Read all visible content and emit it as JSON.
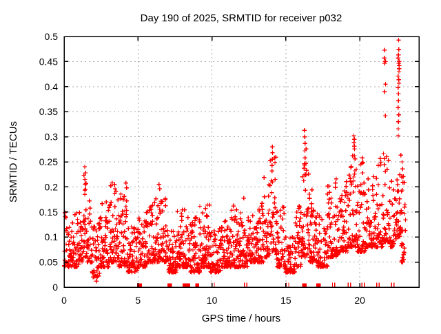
{
  "chart_data": {
    "type": "scatter",
    "title": "Day 190 of 2025, SRMTID for receiver p032",
    "xlabel": "GPS time / hours",
    "ylabel": "SRMTID / TECUs",
    "xlim": [
      0,
      24
    ],
    "ylim": [
      0,
      0.5
    ],
    "xticks": [
      0,
      5,
      10,
      15,
      20
    ],
    "yticks": [
      0,
      0.05,
      0.1,
      0.15,
      0.2,
      0.25,
      0.3,
      0.35,
      0.4,
      0.45,
      0.5
    ],
    "grid": true,
    "legend": "none",
    "marker": "plus",
    "marker_color": "#ff0000",
    "grid_color": "#a9a9a9",
    "axis_color": "#000000",
    "background_color": "#ffffff",
    "series": [
      {
        "name": "SRMTID",
        "marker": "plus",
        "color": "#ff0000"
      }
    ],
    "data_hours_range": [
      0.0,
      23.1
    ],
    "points_per_hour": 62,
    "cloud_bands_comment": "dense scatter envelope per time interval: [t_start_h, t_end_h, value_lo_TECU, value_hi_TECU]",
    "cloud_bands": [
      [
        0.0,
        0.5,
        0.04,
        0.16
      ],
      [
        0.5,
        1.0,
        0.04,
        0.15
      ],
      [
        1.0,
        1.3,
        0.05,
        0.16
      ],
      [
        1.3,
        1.55,
        0.06,
        0.24
      ],
      [
        1.55,
        1.9,
        0.05,
        0.2
      ],
      [
        1.9,
        2.4,
        0.02,
        0.13
      ],
      [
        2.4,
        3.0,
        0.04,
        0.17
      ],
      [
        3.0,
        3.7,
        0.05,
        0.21
      ],
      [
        3.7,
        4.3,
        0.04,
        0.2
      ],
      [
        4.3,
        5.0,
        0.03,
        0.13
      ],
      [
        5.0,
        5.6,
        0.04,
        0.15
      ],
      [
        5.6,
        6.2,
        0.05,
        0.17
      ],
      [
        6.2,
        7.0,
        0.05,
        0.18
      ],
      [
        7.0,
        7.6,
        0.03,
        0.13
      ],
      [
        7.6,
        8.5,
        0.04,
        0.16
      ],
      [
        8.5,
        9.2,
        0.03,
        0.14
      ],
      [
        9.2,
        9.9,
        0.04,
        0.17
      ],
      [
        9.9,
        10.6,
        0.03,
        0.12
      ],
      [
        10.6,
        11.3,
        0.04,
        0.14
      ],
      [
        11.3,
        12.0,
        0.04,
        0.17
      ],
      [
        12.0,
        12.4,
        0.04,
        0.18
      ],
      [
        12.4,
        13.0,
        0.05,
        0.15
      ],
      [
        13.0,
        13.5,
        0.05,
        0.17
      ],
      [
        13.5,
        13.9,
        0.06,
        0.22
      ],
      [
        13.9,
        14.35,
        0.07,
        0.26
      ],
      [
        14.35,
        14.9,
        0.04,
        0.16
      ],
      [
        14.9,
        15.6,
        0.03,
        0.1
      ],
      [
        15.6,
        16.1,
        0.04,
        0.18
      ],
      [
        16.1,
        16.55,
        0.06,
        0.28
      ],
      [
        16.55,
        17.1,
        0.05,
        0.2
      ],
      [
        17.1,
        17.8,
        0.04,
        0.15
      ],
      [
        17.8,
        18.6,
        0.06,
        0.21
      ],
      [
        18.6,
        19.2,
        0.07,
        0.22
      ],
      [
        19.2,
        19.75,
        0.08,
        0.27
      ],
      [
        19.75,
        20.4,
        0.07,
        0.25
      ],
      [
        20.4,
        21.1,
        0.08,
        0.24
      ],
      [
        21.1,
        21.6,
        0.08,
        0.26
      ],
      [
        21.6,
        22.0,
        0.09,
        0.28
      ],
      [
        22.0,
        22.5,
        0.08,
        0.24
      ],
      [
        22.5,
        22.8,
        0.1,
        0.28
      ],
      [
        22.8,
        23.1,
        0.05,
        0.22
      ]
    ],
    "spike_clusters_comment": "distinct high/low outlier columns read from the plot: {t: hour, values: TECU list}",
    "spike_clusters": [
      {
        "t": 1.42,
        "values": [
          0.24,
          0.228,
          0.215,
          0.205,
          0.195,
          0.185
        ]
      },
      {
        "t": 2.15,
        "values": [
          0.012
        ]
      },
      {
        "t": 3.45,
        "values": [
          0.205,
          0.196
        ]
      },
      {
        "t": 4.2,
        "values": [
          0.208
        ]
      },
      {
        "t": 6.45,
        "values": [
          0.205,
          0.196
        ]
      },
      {
        "t": 14.1,
        "values": [
          0.28,
          0.268,
          0.255,
          0.243,
          0.232
        ]
      },
      {
        "t": 16.3,
        "values": [
          0.313,
          0.3,
          0.287,
          0.272,
          0.258,
          0.246
        ]
      },
      {
        "t": 18.38,
        "values": [
          0.216,
          0.208,
          0.199
        ]
      },
      {
        "t": 19.6,
        "values": [
          0.302,
          0.295,
          0.288,
          0.281,
          0.276
        ]
      },
      {
        "t": 20.15,
        "values": [
          0.258,
          0.247,
          0.228
        ]
      },
      {
        "t": 21.7,
        "values": [
          0.473,
          0.457,
          0.45,
          0.447,
          0.405,
          0.39,
          0.342
        ]
      },
      {
        "t": 22.62,
        "values": [
          0.493,
          0.474,
          0.463,
          0.457,
          0.45,
          0.447,
          0.442,
          0.436,
          0.43,
          0.421,
          0.414,
          0.407,
          0.398,
          0.386,
          0.372,
          0.358,
          0.344,
          0.33,
          0.316,
          0.302
        ]
      },
      {
        "t": 22.9,
        "values": [
          0.25,
          0.236,
          0.221,
          0.209
        ]
      }
    ],
    "zero_line_squares_comment": "solid red square markers sitting on the y=0 axis: {t: hour, w: width in hours}",
    "zero_line_squares": [
      {
        "t": 5.1,
        "w": 0.32
      },
      {
        "t": 7.15,
        "w": 0.3
      },
      {
        "t": 8.27,
        "w": 0.5
      },
      {
        "t": 9.0,
        "w": 0.26
      },
      {
        "t": 16.25,
        "w": 0.32
      },
      {
        "t": 17.2,
        "w": 0.3
      }
    ],
    "zero_line_tick_pairs_comment": "pairs of thin red ticks on the y=0 axis at these hours",
    "zero_line_tick_pairs": [
      10.07,
      12.27,
      15.1,
      18.22,
      19.28,
      20.22,
      21.22,
      22.22
    ]
  }
}
